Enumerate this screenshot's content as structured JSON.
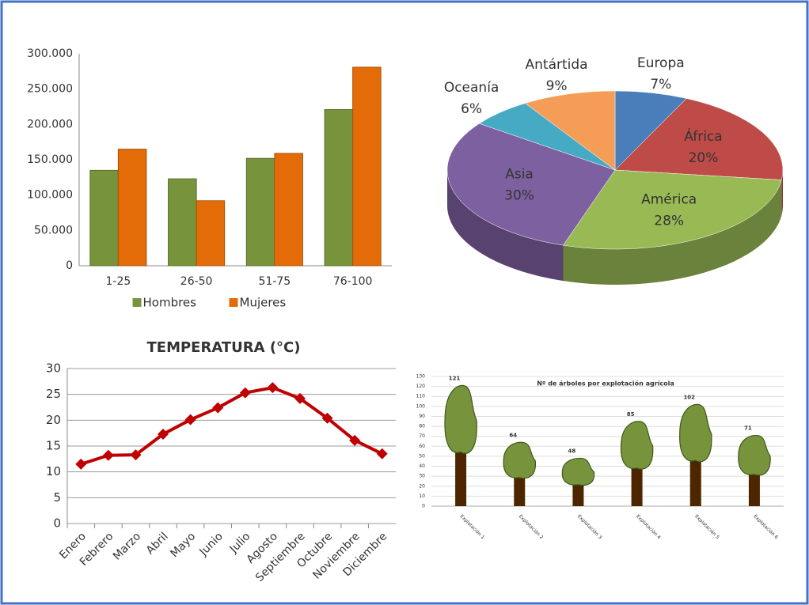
{
  "chart_data": [
    {
      "type": "bar",
      "categories": [
        "1-25",
        "26-50",
        "51-75",
        "76-100"
      ],
      "series": [
        {
          "name": "Hombres",
          "color": "#77933c",
          "values": [
            135000,
            123000,
            152000,
            221000
          ]
        },
        {
          "name": "Mujeres",
          "color": "#e36c09",
          "values": [
            165000,
            92000,
            159000,
            281000
          ]
        }
      ],
      "ylim": [
        0,
        300000
      ],
      "yticks": [
        0,
        {
          "value": 50000,
          "label": "50.000"
        },
        {
          "value": 100000,
          "label": "100.000"
        },
        {
          "value": 150000,
          "label": "150.000"
        },
        {
          "value": 200000,
          "label": "200.000"
        },
        {
          "value": 250000,
          "label": "250.000"
        },
        {
          "value": 300000,
          "label": "300.000"
        }
      ],
      "legend": "bottom"
    },
    {
      "type": "pie",
      "categories": [
        "Europa",
        "África",
        "América",
        "Asia",
        "Oceanía",
        "Antártida"
      ],
      "values": [
        7,
        20,
        28,
        30,
        6,
        9
      ],
      "value_labels": [
        "7%",
        "20%",
        "28%",
        "30%",
        "6%",
        "9%"
      ],
      "colors": [
        "#4a7ebb",
        "#be4b48",
        "#98b954",
        "#7d60a0",
        "#46aac5",
        "#f59d56"
      ]
    },
    {
      "type": "line",
      "title": "TEMPERATURA (°C)",
      "categories": [
        "Enero",
        "Febrero",
        "Marzo",
        "Abril",
        "Mayo",
        "Junio",
        "Julio",
        "Agosto",
        "Septiembre",
        "Octubre",
        "Noviembre",
        "Diciembre"
      ],
      "values": [
        11.5,
        13.2,
        13.3,
        17.3,
        20.1,
        22.4,
        25.3,
        26.3,
        24.2,
        20.4,
        16.1,
        13.5
      ],
      "color": "#c00000",
      "ylim": [
        0,
        30
      ],
      "yticks": [
        0,
        5,
        10,
        15,
        20,
        25,
        30
      ],
      "grid": true
    },
    {
      "type": "tree",
      "title": "Nº de árboles por explotación agrícola",
      "categories": [
        "Explotación 1",
        "Explotación 2",
        "Explotación 3",
        "Explotación 4",
        "Explotación 5",
        "Explotación 6"
      ],
      "values": [
        121,
        64,
        48,
        85,
        102,
        71
      ],
      "ylim": [
        0,
        130
      ],
      "yticks": [
        0,
        10,
        20,
        30,
        40,
        50,
        60,
        70,
        80,
        90,
        100,
        110,
        120,
        130
      ],
      "color": "#77933c",
      "grid": true
    }
  ]
}
